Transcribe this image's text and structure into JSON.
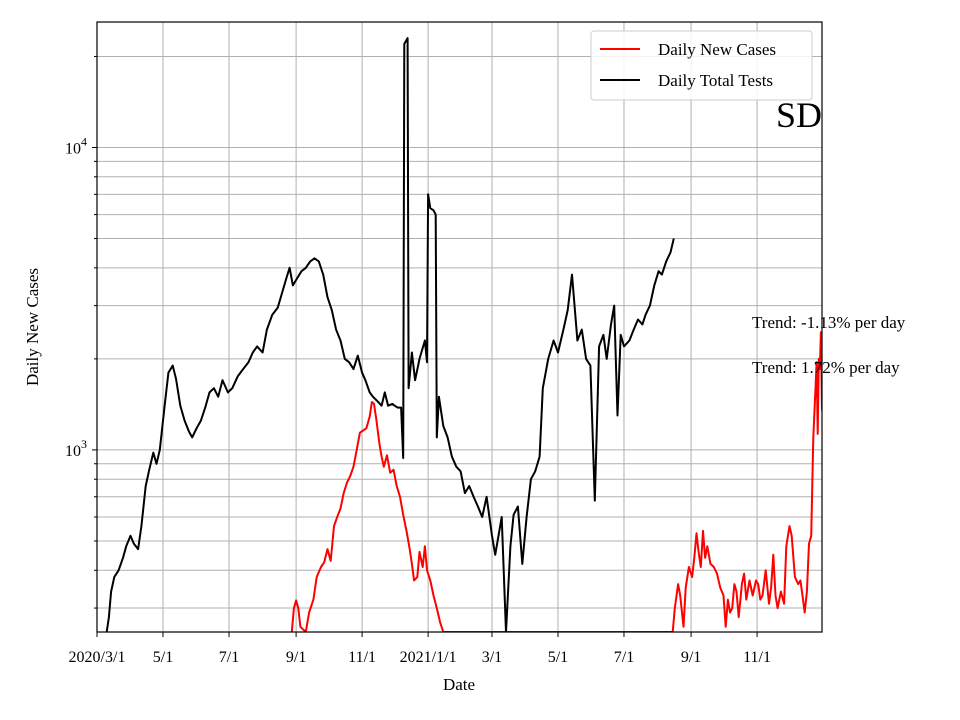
{
  "chart_data": {
    "type": "line",
    "title": "",
    "state_label": "SD",
    "xlabel": "Date",
    "ylabel": "Daily New Cases",
    "yscale": "log",
    "ylim": [
      250,
      26000
    ],
    "xlim": [
      "2020-03-01",
      "2021-12-31"
    ],
    "grid": true,
    "legend_position": "top-right",
    "x_ticks": [
      {
        "date": "2020-03-01",
        "label": "2020/3/1"
      },
      {
        "date": "2020-05-01",
        "label": "5/1"
      },
      {
        "date": "2020-07-01",
        "label": "7/1"
      },
      {
        "date": "2020-09-01",
        "label": "9/1"
      },
      {
        "date": "2020-11-01",
        "label": "11/1"
      },
      {
        "date": "2021-01-01",
        "label": "2021/1/1"
      },
      {
        "date": "2021-03-01",
        "label": "3/1"
      },
      {
        "date": "2021-05-01",
        "label": "5/1"
      },
      {
        "date": "2021-07-01",
        "label": "7/1"
      },
      {
        "date": "2021-09-01",
        "label": "9/1"
      },
      {
        "date": "2021-11-01",
        "label": "11/1"
      }
    ],
    "y_ticks": [
      {
        "value": 1000,
        "base": "10",
        "exp": "3"
      },
      {
        "value": 10000,
        "base": "10",
        "exp": "4"
      }
    ],
    "series": [
      {
        "name": "Daily New Cases",
        "color": "#ff0000",
        "points": [
          [
            "2020-08-28",
            250
          ],
          [
            "2020-08-30",
            300
          ],
          [
            "2020-09-01",
            318
          ],
          [
            "2020-09-03",
            300
          ],
          [
            "2020-09-05",
            260
          ],
          [
            "2020-09-10",
            250
          ],
          [
            "2020-09-13",
            290
          ],
          [
            "2020-09-17",
            320
          ],
          [
            "2020-09-20",
            380
          ],
          [
            "2020-09-24",
            410
          ],
          [
            "2020-09-27",
            425
          ],
          [
            "2020-09-30",
            470
          ],
          [
            "2020-10-03",
            430
          ],
          [
            "2020-10-06",
            560
          ],
          [
            "2020-10-09",
            600
          ],
          [
            "2020-10-12",
            640
          ],
          [
            "2020-10-15",
            720
          ],
          [
            "2020-10-18",
            780
          ],
          [
            "2020-10-21",
            820
          ],
          [
            "2020-10-24",
            880
          ],
          [
            "2020-10-27",
            1000
          ],
          [
            "2020-10-30",
            1140
          ],
          [
            "2020-11-02",
            1160
          ],
          [
            "2020-11-05",
            1180
          ],
          [
            "2020-11-08",
            1290
          ],
          [
            "2020-11-10",
            1440
          ],
          [
            "2020-11-12",
            1420
          ],
          [
            "2020-11-14",
            1270
          ],
          [
            "2020-11-17",
            1050
          ],
          [
            "2020-11-19",
            950
          ],
          [
            "2020-11-21",
            880
          ],
          [
            "2020-11-24",
            960
          ],
          [
            "2020-11-27",
            840
          ],
          [
            "2020-11-30",
            860
          ],
          [
            "2020-12-03",
            760
          ],
          [
            "2020-12-06",
            700
          ],
          [
            "2020-12-09",
            610
          ],
          [
            "2020-12-12",
            540
          ],
          [
            "2020-12-15",
            470
          ],
          [
            "2020-12-17",
            420
          ],
          [
            "2020-12-19",
            370
          ],
          [
            "2020-12-22",
            380
          ],
          [
            "2020-12-24",
            460
          ],
          [
            "2020-12-27",
            410
          ],
          [
            "2020-12-29",
            480
          ],
          [
            "2020-12-31",
            400
          ],
          [
            "2021-01-03",
            370
          ],
          [
            "2021-01-06",
            330
          ],
          [
            "2021-01-09",
            300
          ],
          [
            "2021-01-12",
            270
          ],
          [
            "2021-01-15",
            250
          ],
          [
            "2021-08-15",
            250
          ],
          [
            "2021-08-17",
            300
          ],
          [
            "2021-08-20",
            360
          ],
          [
            "2021-08-22",
            330
          ],
          [
            "2021-08-25",
            260
          ],
          [
            "2021-08-27",
            350
          ],
          [
            "2021-08-30",
            410
          ],
          [
            "2021-09-02",
            380
          ],
          [
            "2021-09-04",
            440
          ],
          [
            "2021-09-06",
            530
          ],
          [
            "2021-09-08",
            460
          ],
          [
            "2021-09-10",
            410
          ],
          [
            "2021-09-12",
            540
          ],
          [
            "2021-09-14",
            440
          ],
          [
            "2021-09-16",
            480
          ],
          [
            "2021-09-19",
            420
          ],
          [
            "2021-09-22",
            410
          ],
          [
            "2021-09-25",
            390
          ],
          [
            "2021-09-28",
            350
          ],
          [
            "2021-10-01",
            330
          ],
          [
            "2021-10-03",
            260
          ],
          [
            "2021-10-05",
            320
          ],
          [
            "2021-10-07",
            290
          ],
          [
            "2021-10-09",
            300
          ],
          [
            "2021-10-11",
            360
          ],
          [
            "2021-10-13",
            340
          ],
          [
            "2021-10-15",
            280
          ],
          [
            "2021-10-18",
            360
          ],
          [
            "2021-10-20",
            390
          ],
          [
            "2021-10-22",
            320
          ],
          [
            "2021-10-25",
            370
          ],
          [
            "2021-10-28",
            330
          ],
          [
            "2021-10-31",
            370
          ],
          [
            "2021-11-02",
            360
          ],
          [
            "2021-11-04",
            320
          ],
          [
            "2021-11-06",
            330
          ],
          [
            "2021-11-09",
            400
          ],
          [
            "2021-11-12",
            310
          ],
          [
            "2021-11-14",
            350
          ],
          [
            "2021-11-16",
            450
          ],
          [
            "2021-11-18",
            330
          ],
          [
            "2021-11-20",
            300
          ],
          [
            "2021-11-23",
            340
          ],
          [
            "2021-11-26",
            310
          ],
          [
            "2021-11-28",
            480
          ],
          [
            "2021-12-01",
            560
          ],
          [
            "2021-12-03",
            520
          ],
          [
            "2021-12-06",
            380
          ],
          [
            "2021-12-09",
            360
          ],
          [
            "2021-12-11",
            370
          ],
          [
            "2021-12-13",
            330
          ],
          [
            "2021-12-15",
            290
          ],
          [
            "2021-12-17",
            340
          ],
          [
            "2021-12-19",
            490
          ],
          [
            "2021-12-21",
            520
          ],
          [
            "2021-12-23",
            1100
          ],
          [
            "2021-12-25",
            1600
          ],
          [
            "2021-12-26",
            1950
          ],
          [
            "2021-12-27",
            1130
          ],
          [
            "2021-12-28",
            2000
          ],
          [
            "2021-12-29",
            1850
          ],
          [
            "2021-12-30",
            2450
          ],
          [
            "2021-12-31",
            1350
          ]
        ]
      },
      {
        "name": "Daily Total Tests",
        "color": "#000000",
        "points": [
          [
            "2020-03-10",
            250
          ],
          [
            "2020-03-12",
            280
          ],
          [
            "2020-03-14",
            340
          ],
          [
            "2020-03-17",
            380
          ],
          [
            "2020-03-21",
            400
          ],
          [
            "2020-03-25",
            440
          ],
          [
            "2020-03-28",
            480
          ],
          [
            "2020-04-01",
            520
          ],
          [
            "2020-04-04",
            490
          ],
          [
            "2020-04-08",
            470
          ],
          [
            "2020-04-11",
            560
          ],
          [
            "2020-04-15",
            760
          ],
          [
            "2020-04-18",
            850
          ],
          [
            "2020-04-22",
            980
          ],
          [
            "2020-04-25",
            900
          ],
          [
            "2020-04-28",
            1000
          ],
          [
            "2020-05-02",
            1350
          ],
          [
            "2020-05-06",
            1800
          ],
          [
            "2020-05-10",
            1900
          ],
          [
            "2020-05-13",
            1720
          ],
          [
            "2020-05-17",
            1400
          ],
          [
            "2020-05-21",
            1250
          ],
          [
            "2020-05-25",
            1150
          ],
          [
            "2020-05-28",
            1100
          ],
          [
            "2020-06-01",
            1180
          ],
          [
            "2020-06-05",
            1250
          ],
          [
            "2020-06-09",
            1380
          ],
          [
            "2020-06-13",
            1550
          ],
          [
            "2020-06-17",
            1600
          ],
          [
            "2020-06-21",
            1500
          ],
          [
            "2020-06-25",
            1700
          ],
          [
            "2020-06-30",
            1550
          ],
          [
            "2020-07-04",
            1600
          ],
          [
            "2020-07-09",
            1750
          ],
          [
            "2020-07-14",
            1850
          ],
          [
            "2020-07-19",
            1950
          ],
          [
            "2020-07-23",
            2100
          ],
          [
            "2020-07-27",
            2200
          ],
          [
            "2020-08-01",
            2100
          ],
          [
            "2020-08-05",
            2500
          ],
          [
            "2020-08-10",
            2800
          ],
          [
            "2020-08-15",
            2950
          ],
          [
            "2020-08-19",
            3300
          ],
          [
            "2020-08-23",
            3700
          ],
          [
            "2020-08-26",
            4000
          ],
          [
            "2020-08-29",
            3500
          ],
          [
            "2020-09-02",
            3700
          ],
          [
            "2020-09-06",
            3900
          ],
          [
            "2020-09-10",
            4000
          ],
          [
            "2020-09-14",
            4200
          ],
          [
            "2020-09-18",
            4300
          ],
          [
            "2020-09-22",
            4200
          ],
          [
            "2020-09-26",
            3800
          ],
          [
            "2020-09-30",
            3200
          ],
          [
            "2020-10-04",
            2900
          ],
          [
            "2020-10-08",
            2500
          ],
          [
            "2020-10-12",
            2300
          ],
          [
            "2020-10-16",
            2000
          ],
          [
            "2020-10-20",
            1950
          ],
          [
            "2020-10-24",
            1850
          ],
          [
            "2020-10-28",
            2050
          ],
          [
            "2020-11-01",
            1800
          ],
          [
            "2020-11-04",
            1700
          ],
          [
            "2020-11-08",
            1550
          ],
          [
            "2020-11-11",
            1500
          ],
          [
            "2020-11-15",
            1450
          ],
          [
            "2020-11-19",
            1400
          ],
          [
            "2020-11-22",
            1550
          ],
          [
            "2020-11-25",
            1400
          ],
          [
            "2020-11-29",
            1420
          ],
          [
            "2020-12-01",
            1400
          ],
          [
            "2020-12-04",
            1380
          ],
          [
            "2020-12-07",
            1380
          ],
          [
            "2020-12-09",
            940
          ],
          [
            "2020-12-10",
            22000
          ],
          [
            "2020-12-13",
            23000
          ],
          [
            "2020-12-14",
            1600
          ],
          [
            "2020-12-17",
            2100
          ],
          [
            "2020-12-20",
            1700
          ],
          [
            "2020-12-24",
            2000
          ],
          [
            "2020-12-29",
            2300
          ],
          [
            "2020-12-31",
            1950
          ],
          [
            "2021-01-01",
            7000
          ],
          [
            "2021-01-03",
            6300
          ],
          [
            "2021-01-06",
            6200
          ],
          [
            "2021-01-08",
            6000
          ],
          [
            "2021-01-09",
            1100
          ],
          [
            "2021-01-11",
            1500
          ],
          [
            "2021-01-15",
            1200
          ],
          [
            "2021-01-19",
            1100
          ],
          [
            "2021-01-23",
            950
          ],
          [
            "2021-01-27",
            880
          ],
          [
            "2021-01-31",
            850
          ],
          [
            "2021-02-04",
            720
          ],
          [
            "2021-02-08",
            760
          ],
          [
            "2021-02-12",
            700
          ],
          [
            "2021-02-16",
            650
          ],
          [
            "2021-02-20",
            600
          ],
          [
            "2021-02-24",
            700
          ],
          [
            "2021-03-01",
            520
          ],
          [
            "2021-03-04",
            450
          ],
          [
            "2021-03-07",
            520
          ],
          [
            "2021-03-10",
            600
          ],
          [
            "2021-03-14",
            250
          ],
          [
            "2021-03-18",
            480
          ],
          [
            "2021-03-21",
            610
          ],
          [
            "2021-03-25",
            650
          ],
          [
            "2021-03-29",
            420
          ],
          [
            "2021-04-02",
            600
          ],
          [
            "2021-04-06",
            800
          ],
          [
            "2021-04-10",
            850
          ],
          [
            "2021-04-14",
            950
          ],
          [
            "2021-04-17",
            1600
          ],
          [
            "2021-04-22",
            2000
          ],
          [
            "2021-04-27",
            2300
          ],
          [
            "2021-05-01",
            2100
          ],
          [
            "2021-05-06",
            2500
          ],
          [
            "2021-05-10",
            2900
          ],
          [
            "2021-05-14",
            3800
          ],
          [
            "2021-05-19",
            2300
          ],
          [
            "2021-05-23",
            2500
          ],
          [
            "2021-05-27",
            2000
          ],
          [
            "2021-05-31",
            1900
          ],
          [
            "2021-06-04",
            680
          ],
          [
            "2021-06-08",
            2200
          ],
          [
            "2021-06-12",
            2400
          ],
          [
            "2021-06-15",
            2000
          ],
          [
            "2021-06-19",
            2600
          ],
          [
            "2021-06-22",
            3000
          ],
          [
            "2021-06-25",
            1300
          ],
          [
            "2021-06-28",
            2400
          ],
          [
            "2021-07-01",
            2200
          ],
          [
            "2021-07-06",
            2300
          ],
          [
            "2021-07-10",
            2500
          ],
          [
            "2021-07-14",
            2700
          ],
          [
            "2021-07-18",
            2600
          ],
          [
            "2021-07-21",
            2800
          ],
          [
            "2021-07-25",
            3000
          ],
          [
            "2021-07-29",
            3500
          ],
          [
            "2021-08-02",
            3900
          ],
          [
            "2021-08-05",
            3800
          ],
          [
            "2021-08-09",
            4200
          ],
          [
            "2021-08-13",
            4500
          ],
          [
            "2021-08-16",
            5000
          ]
        ]
      }
    ],
    "annotations": [
      "Trend: -1.13% per day",
      "Trend: 1.72% per day"
    ]
  }
}
